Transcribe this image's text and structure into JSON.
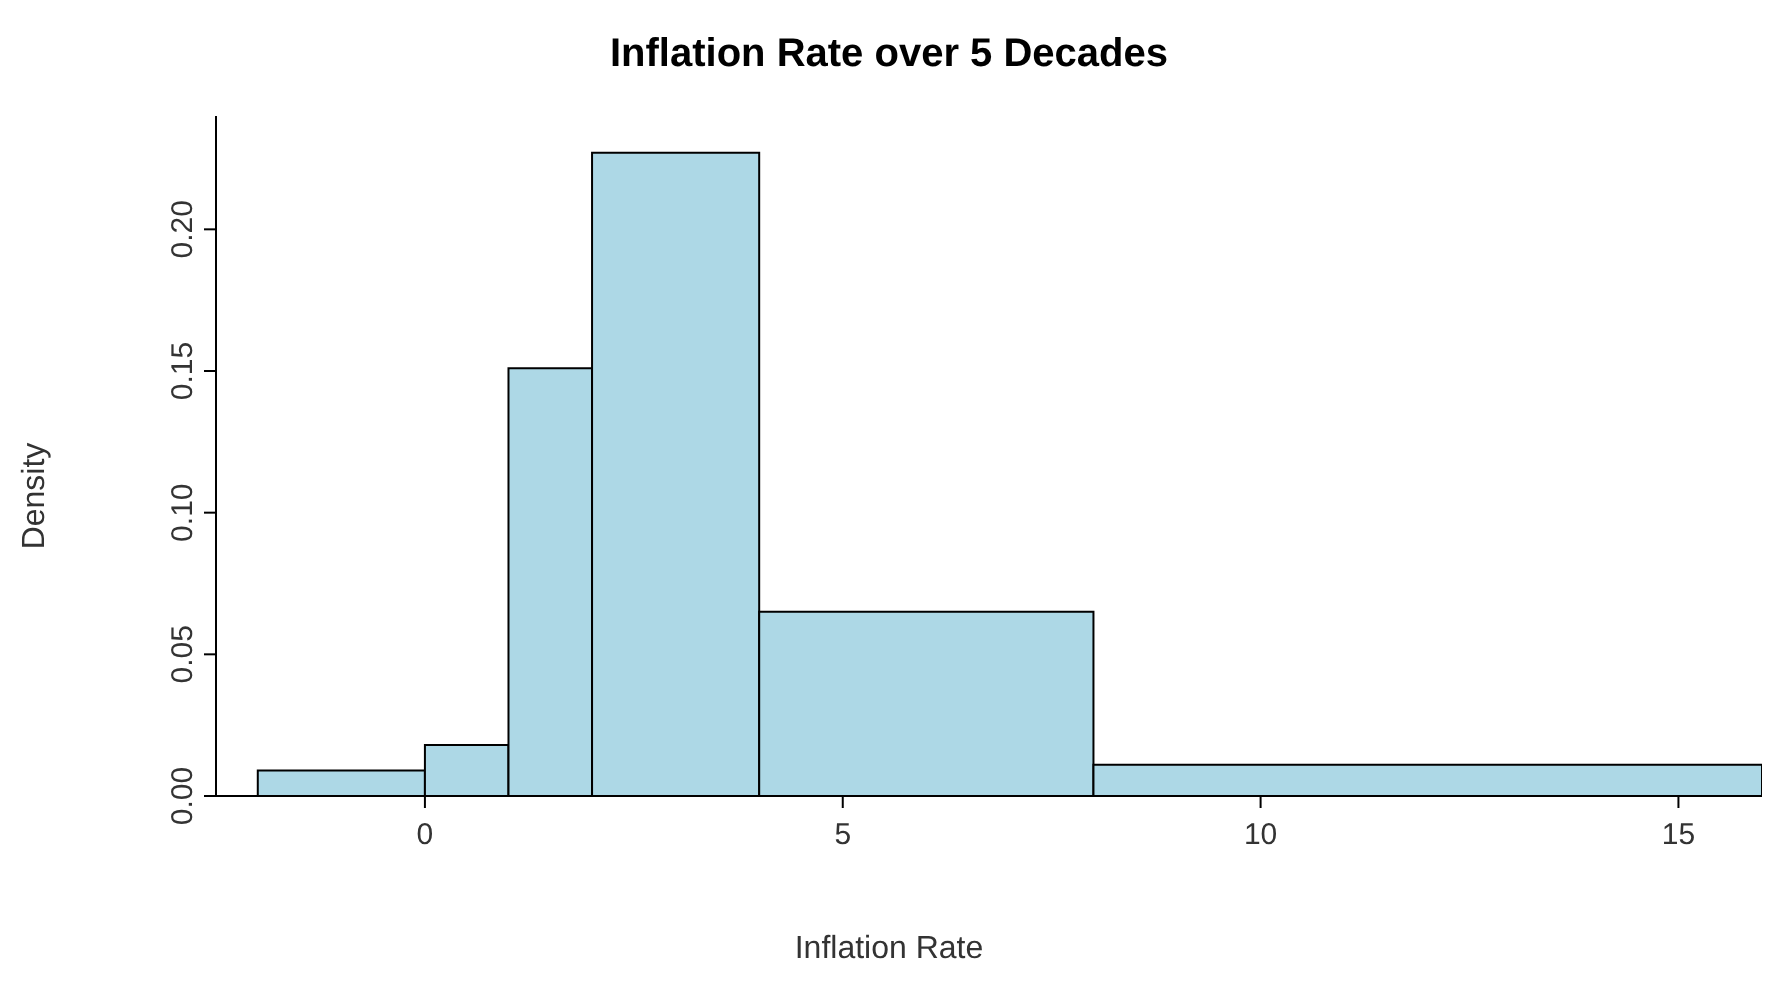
{
  "chart_data": {
    "type": "histogram",
    "title": "Inflation Rate over 5 Decades",
    "xlabel": "Inflation Rate",
    "ylabel": "Density",
    "bins": [
      -2,
      0,
      1,
      2,
      4,
      8,
      16
    ],
    "values": [
      0.009,
      0.018,
      0.151,
      0.227,
      0.065,
      0.011
    ],
    "color": "#add8e6",
    "xlim": [
      -2.5,
      16
    ],
    "xticks": [
      0,
      5,
      10,
      15
    ],
    "ylim": [
      0,
      0.24
    ],
    "yticks": [
      {
        "value": 0,
        "label": "0.00"
      },
      {
        "value": 0.05,
        "label": "0.05"
      },
      {
        "value": 0.1,
        "label": "0.10"
      },
      {
        "value": 0.15,
        "label": "0.15"
      },
      {
        "value": 0.2,
        "label": "0.20"
      }
    ],
    "grid": false
  }
}
